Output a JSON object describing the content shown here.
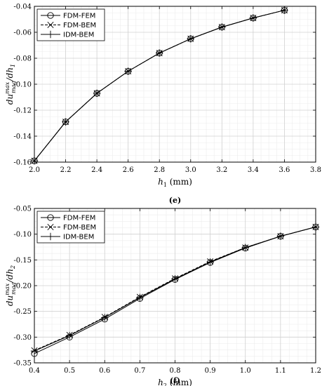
{
  "chart_data": [
    {
      "type": "line",
      "caption": "(e)",
      "xlabel": "h1 (mm)",
      "xlabel_main": "h",
      "xlabel_sub": "1",
      "xlabel_unit": " (mm)",
      "ylabel": "du_mag^max/dh1",
      "ylabel_parts": {
        "base": "du",
        "sup": "max",
        "sub": "mag",
        "mid": "/dh",
        "tail": "1"
      },
      "xlim": [
        2.0,
        3.8
      ],
      "ylim": [
        -0.16,
        -0.04
      ],
      "xticks": [
        "2.0",
        "2.2",
        "2.4",
        "2.6",
        "2.8",
        "3.0",
        "3.2",
        "3.4",
        "3.6",
        "3.8"
      ],
      "yticks": [
        "-0.16",
        "-0.14",
        "-0.12",
        "-0.10",
        "-0.08",
        "-0.06",
        "-0.04"
      ],
      "xtick_values": [
        2.0,
        2.2,
        2.4,
        2.6,
        2.8,
        3.0,
        3.2,
        3.4,
        3.6,
        3.8
      ],
      "ytick_values": [
        -0.16,
        -0.14,
        -0.12,
        -0.1,
        -0.08,
        -0.06,
        -0.04
      ],
      "grid": true,
      "legend_position": "top-left",
      "x": [
        2.0,
        2.2,
        2.4,
        2.6,
        2.8,
        3.0,
        3.2,
        3.4,
        3.6
      ],
      "series": [
        {
          "name": "FDM-FEM",
          "marker": "circle",
          "dash": "solid",
          "values": [
            -0.159,
            -0.129,
            -0.107,
            -0.09,
            -0.076,
            -0.065,
            -0.056,
            -0.049,
            -0.043
          ]
        },
        {
          "name": "FDM-BEM",
          "marker": "x",
          "dash": "dashed",
          "values": [
            -0.159,
            -0.129,
            -0.107,
            -0.09,
            -0.076,
            -0.065,
            -0.056,
            -0.049,
            -0.043
          ]
        },
        {
          "name": "IDM-BEM",
          "marker": "plus",
          "dash": "solid",
          "values": [
            -0.159,
            -0.129,
            -0.107,
            -0.09,
            -0.076,
            -0.065,
            -0.056,
            -0.049,
            -0.043
          ]
        }
      ]
    },
    {
      "type": "line",
      "caption": "(f)",
      "xlabel": "h2 (mm)",
      "xlabel_main": "h",
      "xlabel_sub": "2",
      "xlabel_unit": " (mm)",
      "ylabel": "du_mag^max/dh2",
      "ylabel_parts": {
        "base": "du",
        "sup": "max",
        "sub": "mag",
        "mid": "/dh",
        "tail": "2"
      },
      "xlim": [
        0.4,
        1.2
      ],
      "ylim": [
        -0.35,
        -0.05
      ],
      "xticks": [
        "0.4",
        "0.5",
        "0.6",
        "0.7",
        "0.8",
        "0.9",
        "1.0",
        "1.1",
        "1.2"
      ],
      "yticks": [
        "-0.35",
        "-0.30",
        "-0.25",
        "-0.20",
        "-0.15",
        "-0.10",
        "-0.05"
      ],
      "xtick_values": [
        0.4,
        0.5,
        0.6,
        0.7,
        0.8,
        0.9,
        1.0,
        1.1,
        1.2
      ],
      "ytick_values": [
        -0.35,
        -0.3,
        -0.25,
        -0.2,
        -0.15,
        -0.1,
        -0.05
      ],
      "grid": true,
      "legend_position": "top-left",
      "x": [
        0.4,
        0.5,
        0.6,
        0.7,
        0.8,
        0.9,
        1.0,
        1.1,
        1.2
      ],
      "series": [
        {
          "name": "FDM-FEM",
          "marker": "circle",
          "dash": "solid",
          "values": [
            -0.332,
            -0.3,
            -0.265,
            -0.225,
            -0.188,
            -0.155,
            -0.127,
            -0.104,
            -0.086
          ]
        },
        {
          "name": "FDM-BEM",
          "marker": "x",
          "dash": "dashed",
          "values": [
            -0.326,
            -0.296,
            -0.261,
            -0.222,
            -0.186,
            -0.153,
            -0.126,
            -0.104,
            -0.086
          ]
        },
        {
          "name": "IDM-BEM",
          "marker": "plus",
          "dash": "solid",
          "values": [
            -0.327,
            -0.297,
            -0.262,
            -0.223,
            -0.187,
            -0.154,
            -0.126,
            -0.104,
            -0.086
          ]
        }
      ]
    }
  ]
}
